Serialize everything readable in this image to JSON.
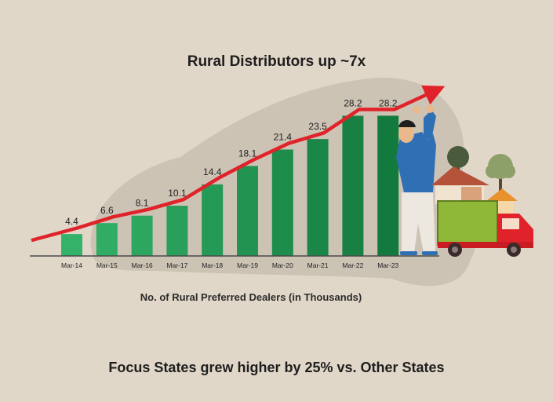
{
  "chart_data": {
    "type": "bar",
    "title": "Rural Distributors up ~7x",
    "xlabel": "No. of Rural Preferred Dealers (in Thousands)",
    "categories": [
      "Mar-14",
      "Mar-15",
      "Mar-16",
      "Mar-17",
      "Mar-18",
      "Mar-19",
      "Mar-20",
      "Mar-21",
      "Mar-22",
      "Mar-23"
    ],
    "values": [
      4.4,
      6.6,
      8.1,
      10.1,
      14.4,
      18.1,
      21.4,
      23.5,
      28.2,
      28.2
    ],
    "ylim": [
      0,
      30
    ],
    "grid": false,
    "legend": "none",
    "trend_arrow": true
  },
  "footer": {
    "note": "Focus States grew higher by 25% vs. Other States"
  },
  "colors": {
    "background": "#e1d7c9",
    "blob": "#cdc3b5",
    "bar_light": "#34b26a",
    "bar_dark": "#137a3d",
    "arrow": "#e0232a",
    "axis": "#4a4a4a"
  },
  "illustration": {
    "icons": [
      "person-pushing-arrow-icon",
      "house-icon",
      "tree-icon",
      "delivery-truck-icon"
    ]
  }
}
